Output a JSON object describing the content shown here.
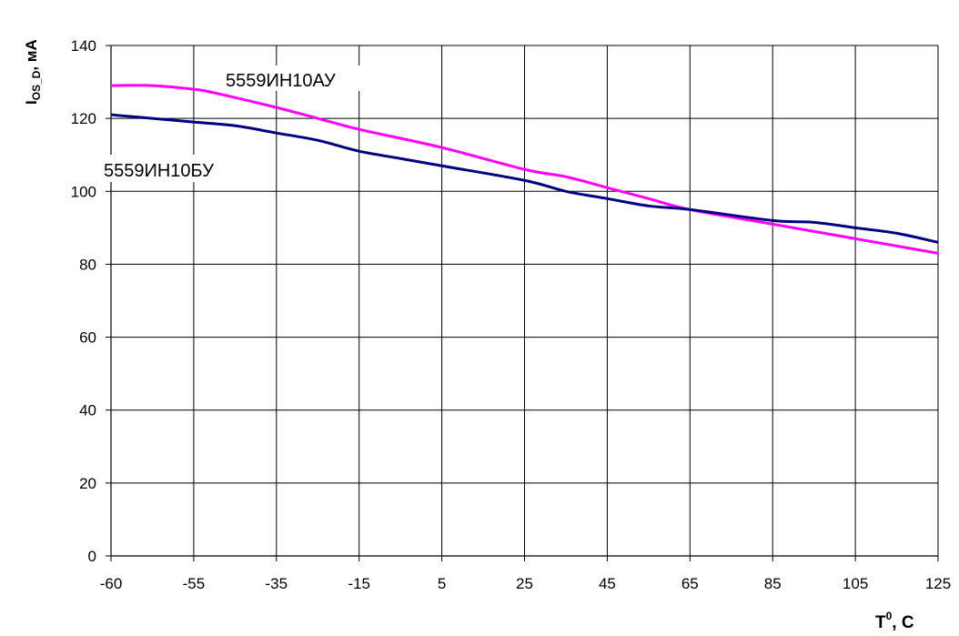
{
  "chart_data": {
    "type": "line",
    "title": "",
    "ylabel": {
      "main": "I",
      "sub": "OS_D",
      "rest": ", мА"
    },
    "xlabel": {
      "main": "T",
      "sup": "0",
      "rest": ", C"
    },
    "categories": [
      "-60",
      "-55",
      "-35",
      "-15",
      "5",
      "25",
      "45",
      "65",
      "85",
      "105",
      "125"
    ],
    "ylim": [
      0,
      140
    ],
    "yticks": [
      0,
      20,
      40,
      60,
      80,
      100,
      120,
      140
    ],
    "grid": true,
    "series": [
      {
        "name": "5559ИН10АУ",
        "color": "#ff00ff",
        "points": [
          [
            0,
            129
          ],
          [
            0.5,
            129
          ],
          [
            1,
            128
          ],
          [
            1.25,
            127
          ],
          [
            2,
            123
          ],
          [
            2.5,
            120
          ],
          [
            3,
            117
          ],
          [
            4,
            112
          ],
          [
            5,
            106
          ],
          [
            5.5,
            104
          ],
          [
            6,
            101
          ],
          [
            6.5,
            98
          ],
          [
            7,
            95
          ],
          [
            8,
            91
          ],
          [
            9,
            87
          ],
          [
            10,
            83
          ]
        ]
      },
      {
        "name": "5559ИН10БУ",
        "color": "#000080",
        "points": [
          [
            0,
            121
          ],
          [
            0.5,
            120
          ],
          [
            1,
            119
          ],
          [
            1.5,
            118
          ],
          [
            2,
            116
          ],
          [
            2.5,
            114
          ],
          [
            3,
            111
          ],
          [
            3.5,
            109
          ],
          [
            4,
            107
          ],
          [
            5,
            103
          ],
          [
            5.5,
            100
          ],
          [
            6,
            98
          ],
          [
            6.5,
            96
          ],
          [
            7,
            95
          ],
          [
            8,
            92
          ],
          [
            8.5,
            91.5
          ],
          [
            9,
            90
          ],
          [
            9.5,
            88.5
          ],
          [
            10,
            86
          ]
        ]
      }
    ]
  }
}
